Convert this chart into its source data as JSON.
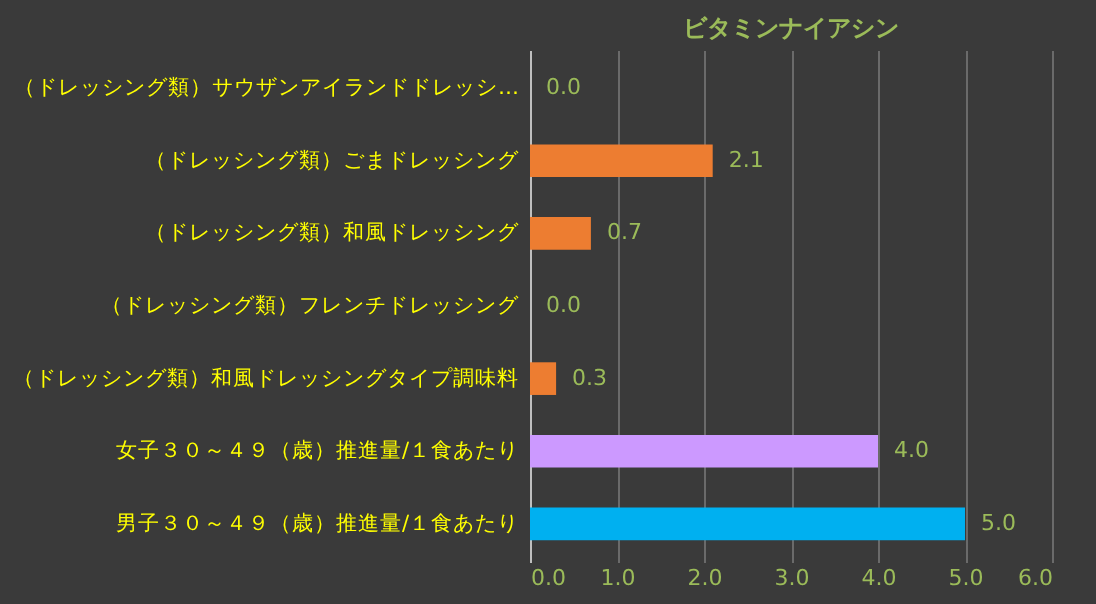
{
  "chart_data": {
    "type": "bar",
    "orientation": "horizontal",
    "title": "ビタミンナイアシン",
    "categories": [
      "（ドレッシング類）サウザンアイランドドレッシ…",
      "（ドレッシング類）ごまドレッシング",
      "（ドレッシング類）和風ドレッシング",
      "（ドレッシング類）フレンチドレッシング",
      "（ドレッシング類）和風ドレッシングタイプ調味料",
      "女子３０～４９（歳）推進量/１食あたり",
      "男子３０～４９（歳）推進量/１食あたり"
    ],
    "values": [
      0,
      2.1,
      0.7,
      0,
      0.3,
      4.0,
      5.0
    ],
    "colors": [
      "#ed7d31",
      "#ed7d31",
      "#ed7d31",
      "#ed7d31",
      "#ed7d31",
      "#cc99ff",
      "#00b0f0"
    ],
    "value_labels": [
      "0.0",
      "2.1",
      "0.7",
      "0.0",
      "0.3",
      "4.0",
      "5.0"
    ],
    "xlim": [
      0,
      6
    ],
    "xticks": [
      {
        "value": 0,
        "label": "0.0"
      },
      {
        "value": 1,
        "label": "1.0"
      },
      {
        "value": 2,
        "label": "2.0"
      },
      {
        "value": 3,
        "label": "3.0"
      },
      {
        "value": 4,
        "label": "4.0"
      },
      {
        "value": 5,
        "label": "5.0"
      },
      {
        "value": 6,
        "label": "6.0"
      }
    ],
    "grid": "x"
  }
}
